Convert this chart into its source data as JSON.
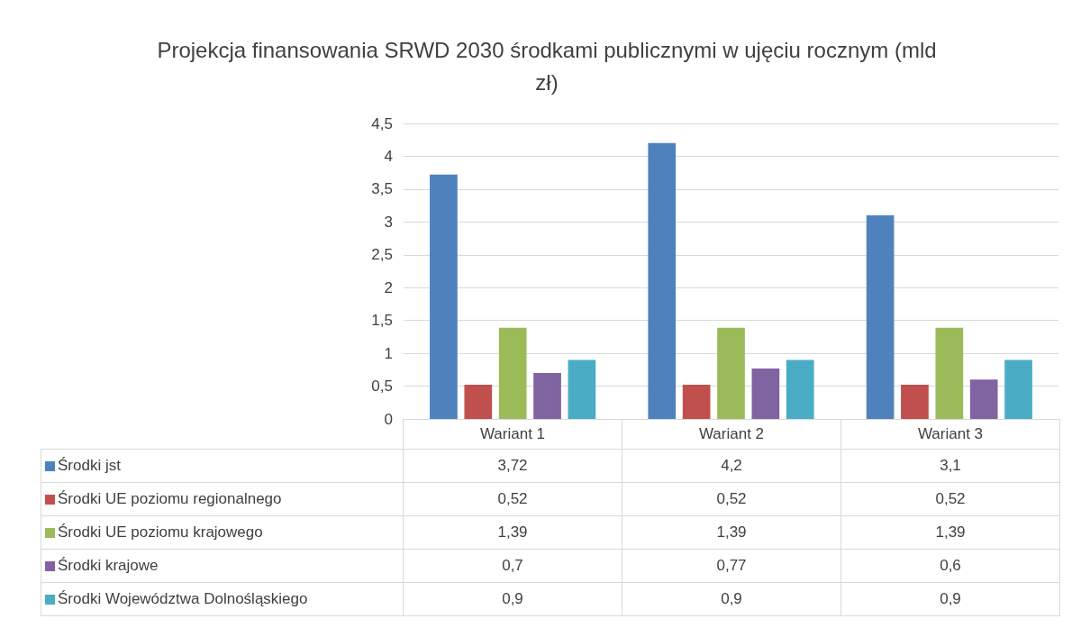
{
  "chart_data": {
    "type": "bar",
    "title": "Projekcja finansowania SRWD 2030 środkami publicznymi w ujęciu rocznym (mld zł)",
    "categories": [
      "Wariant 1",
      "Wariant 2",
      "Wariant 3"
    ],
    "series": [
      {
        "name": "Środki jst",
        "color": "#4f81bd",
        "values": [
          3.72,
          4.2,
          3.1
        ],
        "value_labels": [
          "3,72",
          "4,2",
          "3,1"
        ]
      },
      {
        "name": "Środki UE poziomu regionalnego",
        "color": "#c0504d",
        "values": [
          0.52,
          0.52,
          0.52
        ],
        "value_labels": [
          "0,52",
          "0,52",
          "0,52"
        ]
      },
      {
        "name": "Środki UE poziomu krajowego",
        "color": "#9bbb59",
        "values": [
          1.39,
          1.39,
          1.39
        ],
        "value_labels": [
          "1,39",
          "1,39",
          "1,39"
        ]
      },
      {
        "name": "Środki krajowe",
        "color": "#8064a2",
        "values": [
          0.7,
          0.77,
          0.6
        ],
        "value_labels": [
          "0,7",
          "0,77",
          "0,6"
        ]
      },
      {
        "name": "Środki Województwa Dolnośląskiego",
        "color": "#4bacc6",
        "values": [
          0.9,
          0.9,
          0.9
        ],
        "value_labels": [
          "0,9",
          "0,9",
          "0,9"
        ]
      }
    ],
    "ylim": [
      0,
      4.5
    ],
    "yticks": [
      0,
      {
        "value": 0.5,
        "label": "0,5"
      },
      1,
      {
        "value": 1.5,
        "label": "1,5"
      },
      2,
      {
        "value": 2.5,
        "label": "2,5"
      },
      3,
      {
        "value": 3.5,
        "label": "3,5"
      },
      4,
      {
        "value": 4.5,
        "label": "4,5"
      }
    ],
    "grid": "y",
    "legend": "bottom"
  }
}
